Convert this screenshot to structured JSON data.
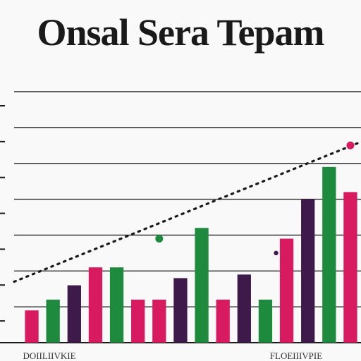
{
  "chart_data": {
    "type": "bar",
    "title": "Onsal Sera Tepam",
    "xlabel": "",
    "ylabel": "",
    "ylim": [
      0,
      7
    ],
    "grid": true,
    "legend": "none",
    "x_tick_labels": [
      "DOIILIIVKIE",
      "",
      "FLOEIIIVPIE"
    ],
    "colors": {
      "crimson": "#d81b60",
      "green": "#1e8a3e",
      "purple": "#3d1a4a"
    },
    "bars": [
      {
        "value": 0.9,
        "color": "crimson"
      },
      {
        "value": 1.2,
        "color": "green"
      },
      {
        "value": 1.6,
        "color": "purple"
      },
      {
        "value": 2.1,
        "color": "crimson"
      },
      {
        "value": 2.1,
        "color": "green"
      },
      {
        "value": 1.2,
        "color": "crimson"
      },
      {
        "value": 1.2,
        "color": "crimson"
      },
      {
        "value": 1.8,
        "color": "purple"
      },
      {
        "value": 3.2,
        "color": "green"
      },
      {
        "value": 1.2,
        "color": "crimson"
      },
      {
        "value": 1.9,
        "color": "purple"
      },
      {
        "value": 1.2,
        "color": "green"
      },
      {
        "value": 2.9,
        "color": "crimson"
      },
      {
        "value": 4.0,
        "color": "purple"
      },
      {
        "value": 4.9,
        "color": "green"
      },
      {
        "value": 4.2,
        "color": "crimson"
      }
    ],
    "trend": {
      "start": 1.7,
      "end": 5.6
    },
    "points": [
      {
        "x": 6.5,
        "y": 2.9,
        "color": "green"
      },
      {
        "x": 12.0,
        "y": 2.5,
        "color": "purple"
      },
      {
        "x": 15.5,
        "y": 5.5,
        "color": "crimson"
      }
    ]
  }
}
